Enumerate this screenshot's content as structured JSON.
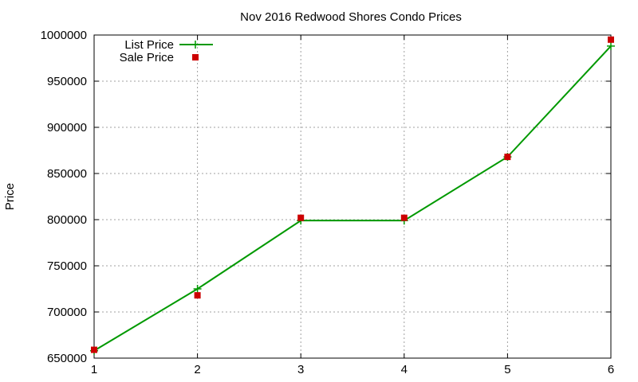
{
  "chart_data": {
    "type": "line",
    "title": "Nov 2016 Redwood Shores Condo Prices",
    "xlabel": "",
    "ylabel": "Price",
    "xlim": [
      1,
      6
    ],
    "ylim": [
      650000,
      1000000
    ],
    "x_ticks": [
      "1",
      "2",
      "3",
      "4",
      "5",
      "6"
    ],
    "y_ticks": [
      "650000",
      "700000",
      "750000",
      "800000",
      "850000",
      "900000",
      "950000",
      "1000000"
    ],
    "grid": true,
    "legend_position": "top-left",
    "series": [
      {
        "name": "List Price",
        "style": "line-with-plus-markers",
        "color": "#009900",
        "x": [
          1,
          2,
          3,
          4,
          5,
          6
        ],
        "values": [
          658000,
          725000,
          799000,
          799000,
          868000,
          988000
        ]
      },
      {
        "name": "Sale Price",
        "style": "square-markers",
        "color": "#cc0000",
        "x": [
          1,
          2,
          3,
          4,
          5,
          6
        ],
        "values": [
          659000,
          718000,
          802000,
          802000,
          868000,
          995000
        ]
      }
    ]
  }
}
